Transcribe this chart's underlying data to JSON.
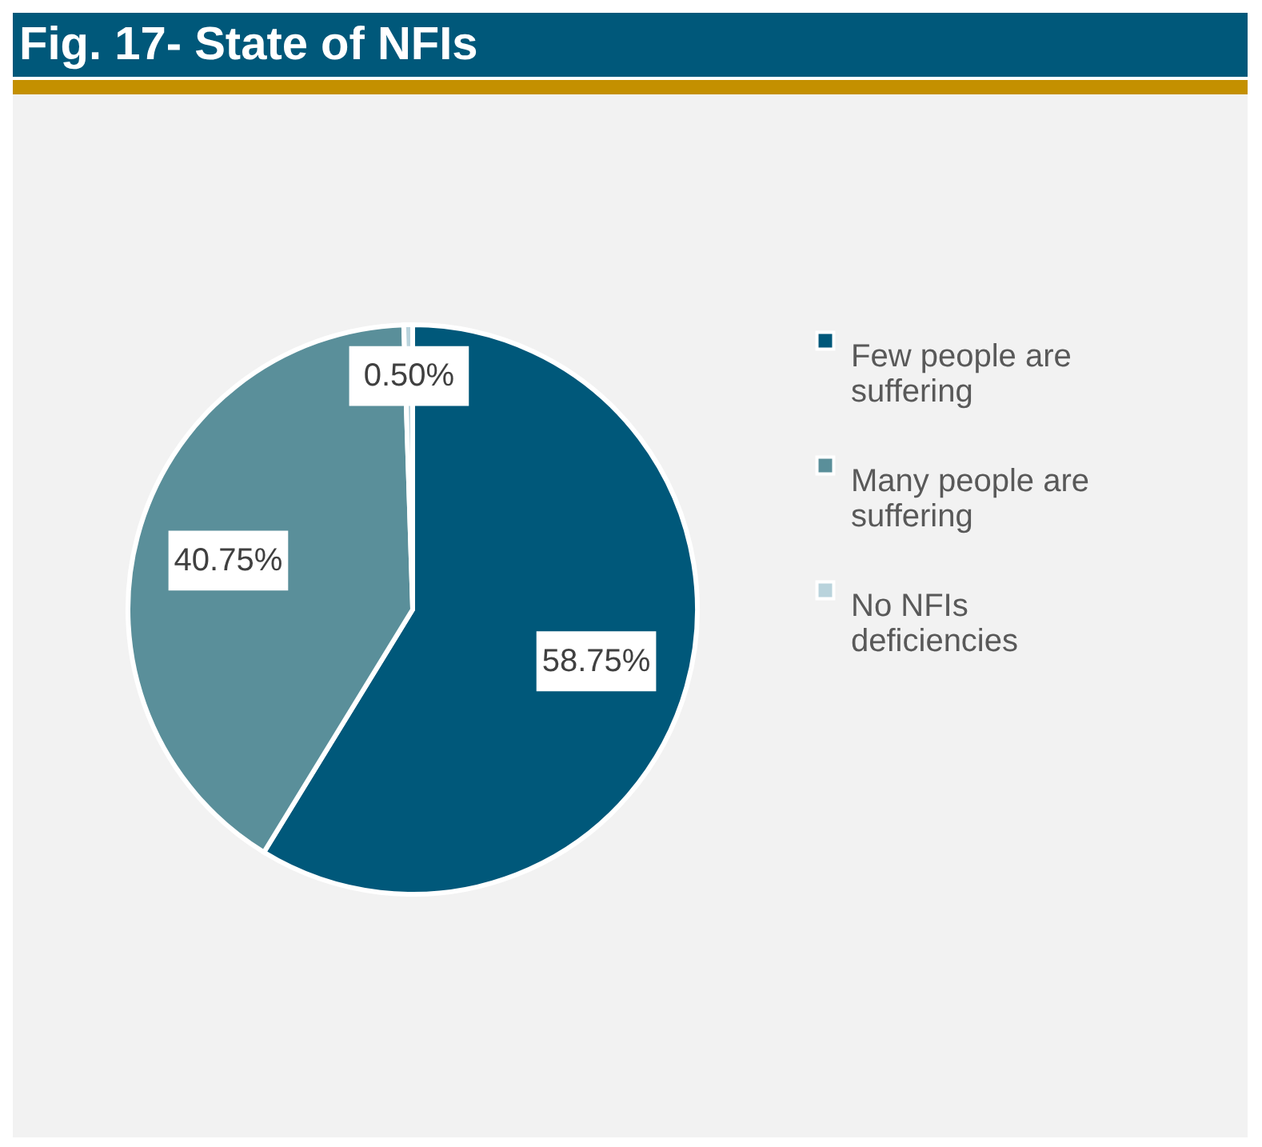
{
  "chart_data": {
    "type": "pie",
    "title": "Fig. 17- State of NFIs",
    "categories": [
      "Few people are suffering",
      "Many people are suffering",
      "No NFIs deficiencies"
    ],
    "values": [
      58.75,
      40.75,
      0.5
    ],
    "colors": [
      "#00587a",
      "#5a8f9a",
      "#b9d3dc"
    ],
    "value_labels": [
      "58.75%",
      "40.75%",
      "0.50%"
    ],
    "legend": "right"
  }
}
